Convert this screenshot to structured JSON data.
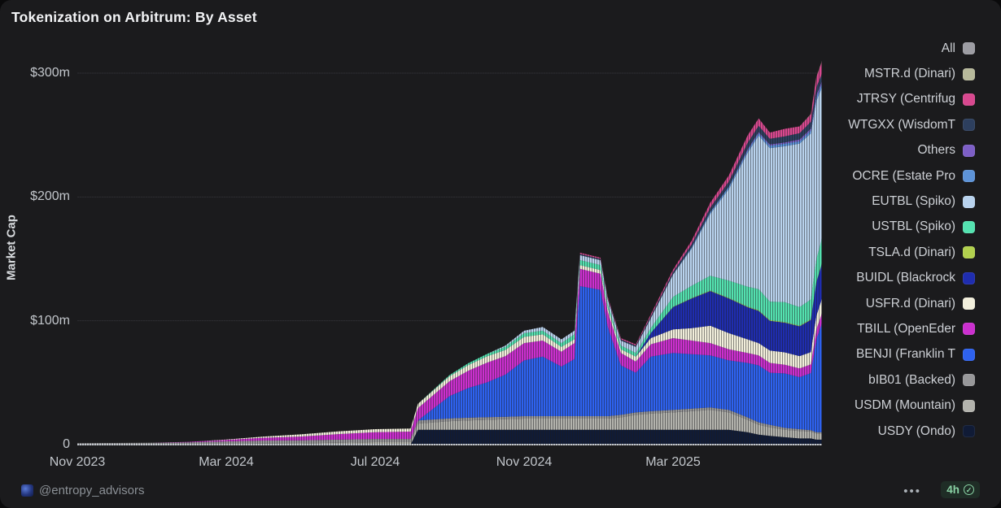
{
  "header": {
    "title": "Tokenization on Arbitrum: By Asset"
  },
  "chart": {
    "y_axis_title": "Market Cap",
    "y_ticks": [
      {
        "label": "$300m",
        "value": 300
      },
      {
        "label": "$200m",
        "value": 200
      },
      {
        "label": "$100m",
        "value": 100
      },
      {
        "label": "0",
        "value": 0
      }
    ],
    "x_ticks": [
      {
        "label": "Nov 2023",
        "t": 0
      },
      {
        "label": "Mar 2024",
        "t": 4
      },
      {
        "label": "Jul 2024",
        "t": 8
      },
      {
        "label": "Nov 2024",
        "t": 12
      },
      {
        "label": "Mar 2025",
        "t": 16
      }
    ]
  },
  "chart_data": {
    "type": "area",
    "stacked": true,
    "title": "Tokenization on Arbitrum: By Asset",
    "ylabel": "Market Cap",
    "units": "USD millions",
    "x_unit": "months since Nov 2023 (Nov 2023 = 0, range ends ~Jul 2025)",
    "ylim": [
      0,
      320
    ],
    "grid": "horizontal",
    "legend_position": "right",
    "x": [
      0,
      1,
      2,
      3,
      4,
      5,
      6,
      7,
      8,
      8.95,
      9.15,
      10,
      10.5,
      11,
      11.5,
      12,
      12.5,
      13,
      13.35,
      13.5,
      14.05,
      14.25,
      14.6,
      15,
      15.4,
      16,
      16.5,
      17,
      17.5,
      18,
      18.3,
      18.6,
      19,
      19.4,
      19.7,
      19.85,
      20
    ],
    "series": [
      {
        "name": "USDY (Ondo)",
        "color": "#101b36",
        "values": [
          0,
          0,
          0,
          0,
          0,
          0,
          0,
          0,
          0,
          0,
          12,
          12,
          12,
          12,
          12,
          12,
          12,
          12,
          12,
          12,
          12,
          12,
          12,
          12,
          12,
          12,
          12,
          12,
          12,
          10,
          8,
          7,
          6,
          5,
          5,
          4,
          4
        ]
      },
      {
        "name": "USDM (Mountain)",
        "color": "#b3b3ad",
        "values": [
          0,
          0,
          0,
          0,
          0.4,
          0.8,
          1,
          1.5,
          2,
          2,
          5,
          7,
          7.5,
          8,
          8.5,
          9,
          9,
          9,
          9,
          9,
          9,
          9,
          10,
          12,
          13,
          14,
          15,
          16,
          14,
          10,
          8,
          7,
          6,
          6,
          5.5,
          5,
          5
        ]
      },
      {
        "name": "bIB01 (Backed)",
        "color": "#98989a",
        "values": [
          1.2,
          1.3,
          1.5,
          1.8,
          2.2,
          2.5,
          2.5,
          2.5,
          2.5,
          2.5,
          2.5,
          2.2,
          2.2,
          2.2,
          2,
          2,
          2,
          2,
          2,
          2,
          2,
          2,
          2,
          2,
          2,
          2,
          2,
          2,
          2,
          2,
          2,
          2,
          1.5,
          1.5,
          1.2,
          1,
          1
        ]
      },
      {
        "name": "BENJI (Franklin Templeton)",
        "color": "#2e62ef",
        "values": [
          0,
          0,
          0,
          0,
          0,
          0,
          0,
          0,
          0,
          0,
          0,
          18,
          24,
          28,
          34,
          45,
          48,
          40,
          46,
          105,
          102,
          72,
          40,
          32,
          44,
          46,
          44,
          42,
          40,
          44,
          46,
          42,
          44,
          42,
          46,
          75,
          88
        ]
      },
      {
        "name": "TBILL (OpenEden)",
        "color": "#cb30cf",
        "values": [
          0,
          0,
          0,
          0.4,
          1.2,
          2.2,
          3,
          4.5,
          5.5,
          6,
          10,
          12,
          14,
          16,
          15,
          14,
          13,
          12,
          13,
          14,
          13,
          12,
          10,
          9,
          10,
          12,
          11,
          10,
          9,
          8,
          8,
          8,
          7,
          7,
          7,
          8,
          8
        ]
      },
      {
        "name": "USFR.d (Dinari)",
        "color": "#f2efdc",
        "values": [
          0,
          0,
          0,
          0,
          0.3,
          1,
          1.8,
          2.2,
          2.5,
          2.5,
          3.5,
          4,
          4.5,
          5,
          5,
          5,
          5,
          4,
          3,
          3,
          3,
          3,
          3,
          4,
          5,
          7,
          10,
          14,
          13,
          11,
          10,
          10,
          10,
          10,
          10,
          11,
          12
        ]
      },
      {
        "name": "BUIDL (Blackrock)",
        "color": "#1f2daf",
        "values": [
          0,
          0,
          0,
          0,
          0,
          0,
          0,
          0,
          0,
          0,
          0,
          0,
          0,
          0,
          0,
          0,
          0,
          0,
          0,
          0,
          0,
          0,
          0,
          0,
          4,
          18,
          24,
          28,
          28,
          26,
          26,
          24,
          24,
          24,
          26,
          27,
          28
        ]
      },
      {
        "name": "TSLA.d (Dinari)",
        "color": "#b2d14e",
        "values": [
          0,
          0,
          0,
          0,
          0,
          0,
          0,
          0,
          0,
          0,
          0,
          0,
          0,
          0,
          0,
          0,
          0,
          0,
          0,
          0,
          0,
          0,
          0,
          0,
          0,
          0.3,
          0.3,
          0.4,
          0.4,
          0.5,
          0.5,
          0.5,
          0.5,
          0.5,
          0.5,
          0.5,
          0.5
        ]
      },
      {
        "name": "USTBL (Spiko)",
        "color": "#54e2b0",
        "values": [
          0,
          0,
          0,
          0,
          0,
          0,
          0,
          0,
          0,
          0,
          0,
          1,
          1.5,
          2,
          2.5,
          3,
          3,
          3,
          4,
          4,
          4,
          3,
          3,
          3,
          4,
          8,
          10,
          12,
          14,
          16,
          17,
          15,
          16,
          15,
          16,
          18,
          20
        ]
      },
      {
        "name": "EUTBL (Spiko)",
        "color": "#b9d3ee",
        "values": [
          0,
          0,
          0,
          0,
          0,
          0,
          0,
          0,
          0,
          0,
          0,
          0,
          0,
          0,
          1,
          2,
          3,
          3,
          3,
          4,
          4,
          4,
          4,
          5,
          8,
          18,
          30,
          50,
          74,
          108,
          124,
          124,
          126,
          132,
          134,
          128,
          122
        ]
      },
      {
        "name": "OCRE (Estate Protocol)",
        "color": "#5d93d8",
        "values": [
          0,
          0,
          0,
          0,
          0,
          0,
          0,
          0,
          0,
          0,
          0,
          0,
          0,
          0,
          0,
          0,
          0,
          0,
          0,
          0,
          0,
          0,
          0,
          0,
          0,
          0,
          1,
          1.5,
          2,
          2,
          2,
          2,
          2,
          2,
          2.5,
          3,
          3
        ]
      },
      {
        "name": "Others",
        "color": "#7d5fc6",
        "values": [
          0,
          0,
          0,
          0,
          0,
          0,
          0,
          0,
          0,
          0,
          0,
          0,
          0,
          0,
          0,
          0,
          0,
          0,
          0,
          0,
          0,
          0,
          0,
          0,
          0,
          0,
          0,
          0,
          0,
          1,
          1,
          1,
          1,
          1.5,
          1.5,
          2,
          2
        ]
      },
      {
        "name": "WTGXX (WisdomTree)",
        "color": "#2d3f5e",
        "values": [
          0,
          0,
          0,
          0,
          0,
          0,
          0,
          0,
          0,
          0,
          0,
          0,
          0,
          0,
          0,
          0,
          0,
          0,
          0,
          1,
          1,
          1,
          1,
          1,
          1.5,
          2,
          2.5,
          3.5,
          4,
          5,
          5,
          4.5,
          5,
          5,
          5.5,
          6,
          6
        ]
      },
      {
        "name": "JTRSY (Centrifuge)",
        "color": "#d8488f",
        "values": [
          0,
          0,
          0,
          0,
          0,
          0,
          0,
          0,
          0,
          0,
          0,
          0,
          0,
          0,
          0,
          0,
          0,
          0,
          0,
          1,
          1,
          1,
          1,
          1,
          1.5,
          2,
          3,
          4,
          5,
          6,
          6,
          5,
          6,
          5.5,
          6,
          8,
          10
        ]
      },
      {
        "name": "MSTR.d (Dinari)",
        "color": "#b7b99b",
        "values": [
          0,
          0,
          0,
          0,
          0,
          0,
          0,
          0,
          0,
          0,
          0,
          0,
          0,
          0,
          0,
          0,
          0,
          0,
          0,
          0,
          0,
          0,
          0,
          0,
          0,
          0,
          0,
          0,
          0,
          0,
          0,
          0,
          0,
          0,
          0.3,
          0.5,
          0.5
        ]
      }
    ]
  },
  "legend": {
    "items": [
      {
        "series": "all",
        "label": "All",
        "color": "#9d9da3"
      },
      {
        "series": "mstr-d",
        "label": "MSTR.d (Dinari)",
        "color": "#b7b99b"
      },
      {
        "series": "jtrsy",
        "label": "JTRSY (Centrifug",
        "color": "#d8488f"
      },
      {
        "series": "wtgxx",
        "label": "WTGXX (WisdomT",
        "color": "#2d3f5e"
      },
      {
        "series": "others",
        "label": "Others",
        "color": "#7d5fc6"
      },
      {
        "series": "ocre",
        "label": "OCRE (Estate Pro",
        "color": "#5d93d8"
      },
      {
        "series": "eutbl",
        "label": "EUTBL (Spiko)",
        "color": "#b9d3ee"
      },
      {
        "series": "ustbl",
        "label": "USTBL (Spiko)",
        "color": "#54e2b0"
      },
      {
        "series": "tsla-d",
        "label": "TSLA.d (Dinari)",
        "color": "#b2d14e"
      },
      {
        "series": "buidl",
        "label": "BUIDL (Blackrock",
        "color": "#1f2daf"
      },
      {
        "series": "usfr-d",
        "label": "USFR.d (Dinari)",
        "color": "#f2efdc"
      },
      {
        "series": "tbill",
        "label": "TBILL (OpenEder",
        "color": "#cb30cf"
      },
      {
        "series": "benji",
        "label": "BENJI (Franklin T",
        "color": "#2e62ef"
      },
      {
        "series": "bib01",
        "label": "bIB01 (Backed)",
        "color": "#98989a"
      },
      {
        "series": "usdm",
        "label": "USDM (Mountain)",
        "color": "#b3b3ad"
      },
      {
        "series": "usdy",
        "label": "USDY (Ondo)",
        "color": "#101b36"
      }
    ]
  },
  "footer": {
    "handle": "@entropy_advisors",
    "menu": "•••",
    "badge": {
      "time": "4h",
      "icon": "check-circle"
    }
  },
  "colors": {
    "background": "#1b1b1d",
    "grid": "#2e2e32",
    "baseline": "#c2c6cb",
    "text_primary": "#f2f3f5",
    "text_secondary": "#c2c6cb",
    "badge_bg": "#1f2d26",
    "badge_fg": "#8ad3a5"
  }
}
